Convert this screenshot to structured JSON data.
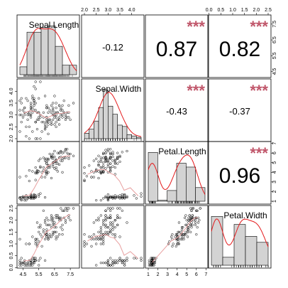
{
  "chart_data": {
    "type": "scatter-matrix",
    "variables": [
      "Sepal.Length",
      "Sepal.Width",
      "Petal.Length",
      "Petal.Width"
    ],
    "ranges": [
      [
        4.3,
        7.9
      ],
      [
        2.0,
        4.4
      ],
      [
        1.0,
        6.9
      ],
      [
        0.1,
        2.5
      ]
    ],
    "ticks": [
      [
        "4.5",
        "5.5",
        "6.5",
        "7.5"
      ],
      [
        "2.0",
        "2.5",
        "3.0",
        "3.5",
        "4.0"
      ],
      [
        "1",
        "2",
        "3",
        "4",
        "5",
        "6",
        "7"
      ],
      [
        "0.0",
        "0.5",
        "1.0",
        "1.5",
        "2.0",
        "2.5"
      ]
    ],
    "correlations": [
      {
        "row": 0,
        "col": 1,
        "value": "-0.12",
        "stars": ""
      },
      {
        "row": 0,
        "col": 2,
        "value": "0.87",
        "stars": "***"
      },
      {
        "row": 0,
        "col": 3,
        "value": "0.82",
        "stars": "***"
      },
      {
        "row": 1,
        "col": 2,
        "value": "-0.43",
        "stars": "***"
      },
      {
        "row": 1,
        "col": 3,
        "value": "-0.37",
        "stars": "***"
      },
      {
        "row": 2,
        "col": 3,
        "value": "0.96",
        "stars": "***"
      }
    ],
    "histograms": [
      {
        "breaks": [
          4.0,
          4.5,
          5.0,
          5.5,
          6.0,
          6.5,
          7.0,
          7.5,
          8.0
        ],
        "counts": [
          5,
          27,
          27,
          30,
          31,
          18,
          6,
          6
        ]
      },
      {
        "breaks": [
          2.0,
          2.2,
          2.4,
          2.6,
          2.8,
          3.0,
          3.2,
          3.4,
          3.6,
          3.8,
          4.0,
          4.2,
          4.4
        ],
        "counts": [
          4,
          7,
          13,
          23,
          36,
          24,
          18,
          10,
          9,
          3,
          2,
          1
        ]
      },
      {
        "breaks": [
          1,
          2,
          3,
          4,
          5,
          6,
          7
        ],
        "counts": [
          50,
          1,
          11,
          39,
          35,
          14
        ]
      },
      {
        "breaks": [
          0.0,
          0.5,
          1.0,
          1.5,
          2.0,
          2.5
        ],
        "counts": [
          49,
          8,
          41,
          29,
          23
        ]
      }
    ],
    "colors": {
      "hist_fill": "#d3d3d3",
      "density": "#e41a1c",
      "smooth": "#e8a0a0",
      "stars": "#c0566a",
      "points": "#000000"
    }
  }
}
